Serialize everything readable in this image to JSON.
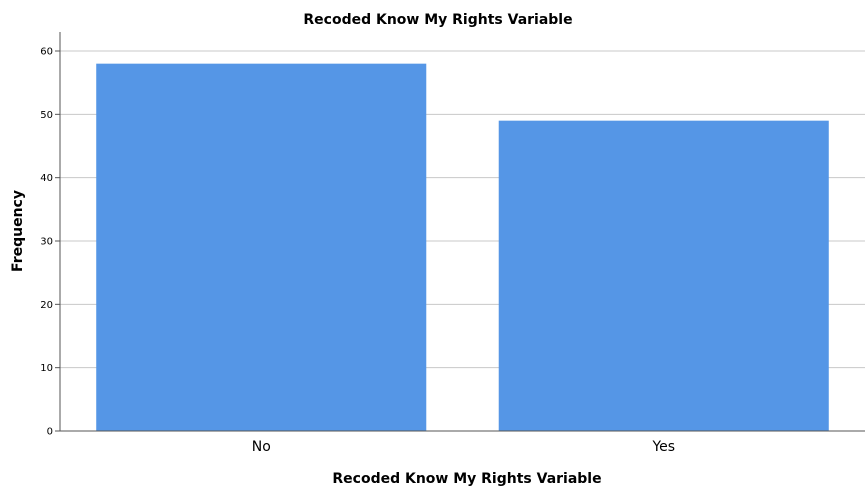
{
  "chart_data": {
    "type": "bar",
    "title": "Recoded Know My Rights Variable",
    "xlabel": "Recoded Know My Rights Variable",
    "ylabel": "Frequency",
    "categories": [
      "No",
      "Yes"
    ],
    "values": [
      58,
      49
    ],
    "ylim": [
      0,
      63
    ],
    "yticks": [
      0,
      10,
      20,
      30,
      40,
      50,
      60
    ],
    "grid": true,
    "bar_color": "#5596e6"
  }
}
